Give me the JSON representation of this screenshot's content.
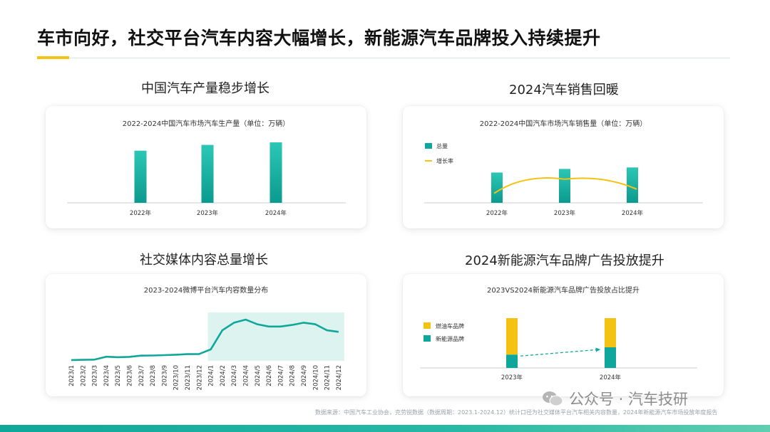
{
  "page": {
    "title": "车市向好，社交平台汽车内容大幅增长，新能源汽车品牌投入持续提升",
    "footer_note": "数据来源：中国汽车工业协会，克劳锐数据（数据周期：2023.1-2024.12）统计口径为社交媒体平台汽车相关内容数量，2024年新能源汽车市场投放年度报告",
    "watermark": "公众号 · 汽车技研",
    "accent_color": "#f3c212",
    "teal_color": "#0fa79b"
  },
  "sections": [
    {
      "heading": "中国汽车产量稳步增长"
    },
    {
      "heading": "2024汽车销售回暖"
    },
    {
      "heading": "社交媒体内容总量增长"
    },
    {
      "heading": "2024新能源汽车品牌广告投放提升"
    }
  ],
  "chart_data": [
    {
      "type": "bar",
      "title": "2022-2024中国汽车市场汽车生产量（单位：万辆）",
      "categories": [
        "2022年",
        "2023年",
        "2024年"
      ],
      "values": [
        2700,
        3000,
        3130
      ],
      "ylim": [
        0,
        3500
      ],
      "grid": false
    },
    {
      "type": "bar",
      "title": "2022-2024中国汽车市场汽车销售量（单位：万辆）",
      "categories": [
        "2022年",
        "2023年",
        "2024年"
      ],
      "legend": [
        "总量",
        "增长率"
      ],
      "legend_position": "top-left",
      "series": [
        {
          "name": "总量",
          "type": "bar",
          "values": [
            2690,
            3010,
            3140
          ]
        },
        {
          "name": "增长率",
          "type": "line",
          "values": [
            2.1,
            12.0,
            4.5
          ]
        }
      ],
      "ylim": [
        0,
        6000
      ],
      "grid": false
    },
    {
      "type": "area",
      "title": "2023-2024微博平台汽车内容数量分布",
      "categories": [
        "2023/1",
        "2023/2",
        "2023/3",
        "2023/4",
        "2023/5",
        "2023/6",
        "2023/7",
        "2023/8",
        "2023/9",
        "2023/10",
        "2023/11",
        "2023/12",
        "2024/1",
        "2024/2",
        "2024/3",
        "2024/4",
        "2024/5",
        "2024/6",
        "2024/7",
        "2024/8",
        "2024/9",
        "2024/10",
        "2024/11",
        "2024/12"
      ],
      "values": [
        1.0,
        1.3,
        1.6,
        5.4,
        4.8,
        5.2,
        6.8,
        7.0,
        7.5,
        8.0,
        8.8,
        9.0,
        15.0,
        40.0,
        50.0,
        54.0,
        48.0,
        45.0,
        45.0,
        47.0,
        50.0,
        48.0,
        40.0,
        38.0
      ],
      "highlight_range": [
        "2024/1",
        "2024/12"
      ],
      "ylim": [
        0,
        70
      ],
      "grid": false
    },
    {
      "type": "bar",
      "title": "2023VS2024新能源汽车品牌广告投放占比提升",
      "categories": [
        "2023年",
        "2024年"
      ],
      "legend": [
        "燃油车品牌",
        "新能源品牌"
      ],
      "legend_position": "left",
      "series": [
        {
          "name": "燃油车品牌",
          "values": [
            60,
            48
          ],
          "color": "#f3c212"
        },
        {
          "name": "新能源品牌",
          "values": [
            22,
            34
          ],
          "color": "#0fa79b"
        }
      ],
      "stacked": true,
      "ylim": [
        0,
        82
      ],
      "annotation": "arrow-from-2023年-to-2024年",
      "grid": false
    }
  ]
}
